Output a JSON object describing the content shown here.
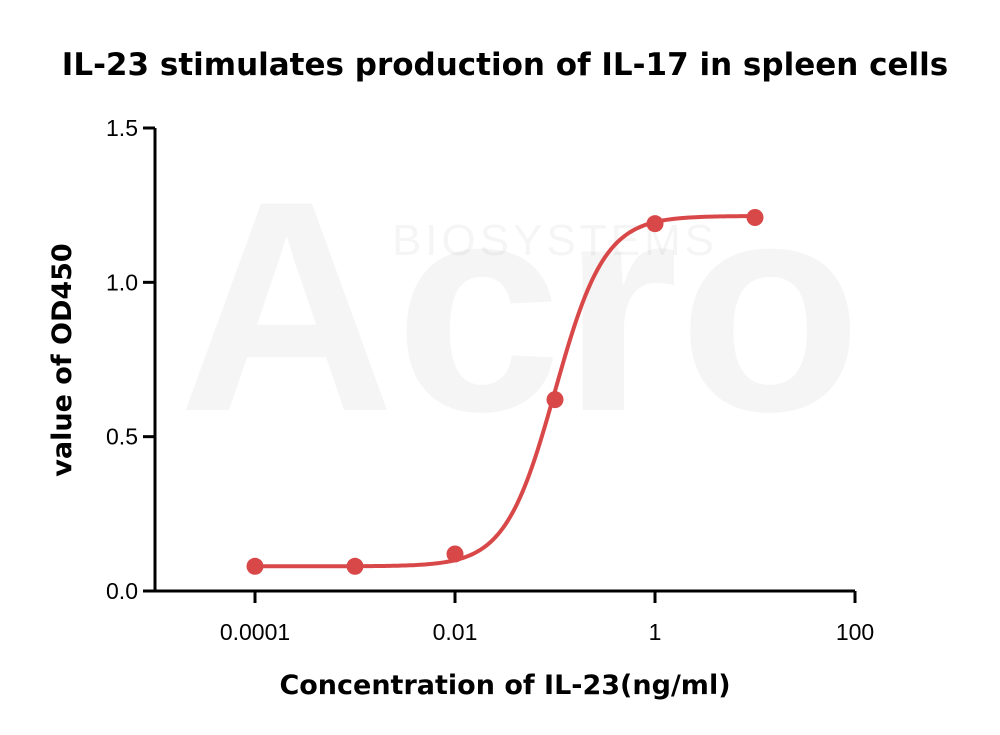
{
  "chart_data": {
    "type": "scatter",
    "title": "IL-23 stimulates production of IL-17 in spleen cells",
    "xlabel": "Concentration of IL-23(ng/ml)",
    "ylabel": "value of OD450",
    "x_scale": "log",
    "xlim": [
      0.0001,
      100
    ],
    "ylim": [
      0,
      1.5
    ],
    "x_ticks": [
      {
        "value": 0.0001,
        "label": "0.0001"
      },
      {
        "value": 0.01,
        "label": "0.01"
      },
      {
        "value": 1,
        "label": "1"
      },
      {
        "value": 100,
        "label": "100"
      }
    ],
    "y_ticks": [
      {
        "value": 0.0,
        "label": "0.0"
      },
      {
        "value": 0.5,
        "label": "0.5"
      },
      {
        "value": 1.0,
        "label": "1.0"
      },
      {
        "value": 1.5,
        "label": "1.5"
      }
    ],
    "grid": false,
    "legend": "none",
    "series": [
      {
        "color": "#d94848",
        "points": [
          {
            "x": 0.0001,
            "y": 0.08
          },
          {
            "x": 0.001,
            "y": 0.08
          },
          {
            "x": 0.01,
            "y": 0.12
          },
          {
            "x": 0.1,
            "y": 0.62
          },
          {
            "x": 1,
            "y": 1.19
          },
          {
            "x": 10,
            "y": 1.21
          }
        ],
        "fit": {
          "model": "4PL",
          "bottom": 0.08,
          "top": 1.215,
          "ec50": 0.1,
          "hill": 1.75
        }
      }
    ],
    "watermark": {
      "brand": "Acro",
      "text": "BIOSYSTEMS"
    }
  }
}
